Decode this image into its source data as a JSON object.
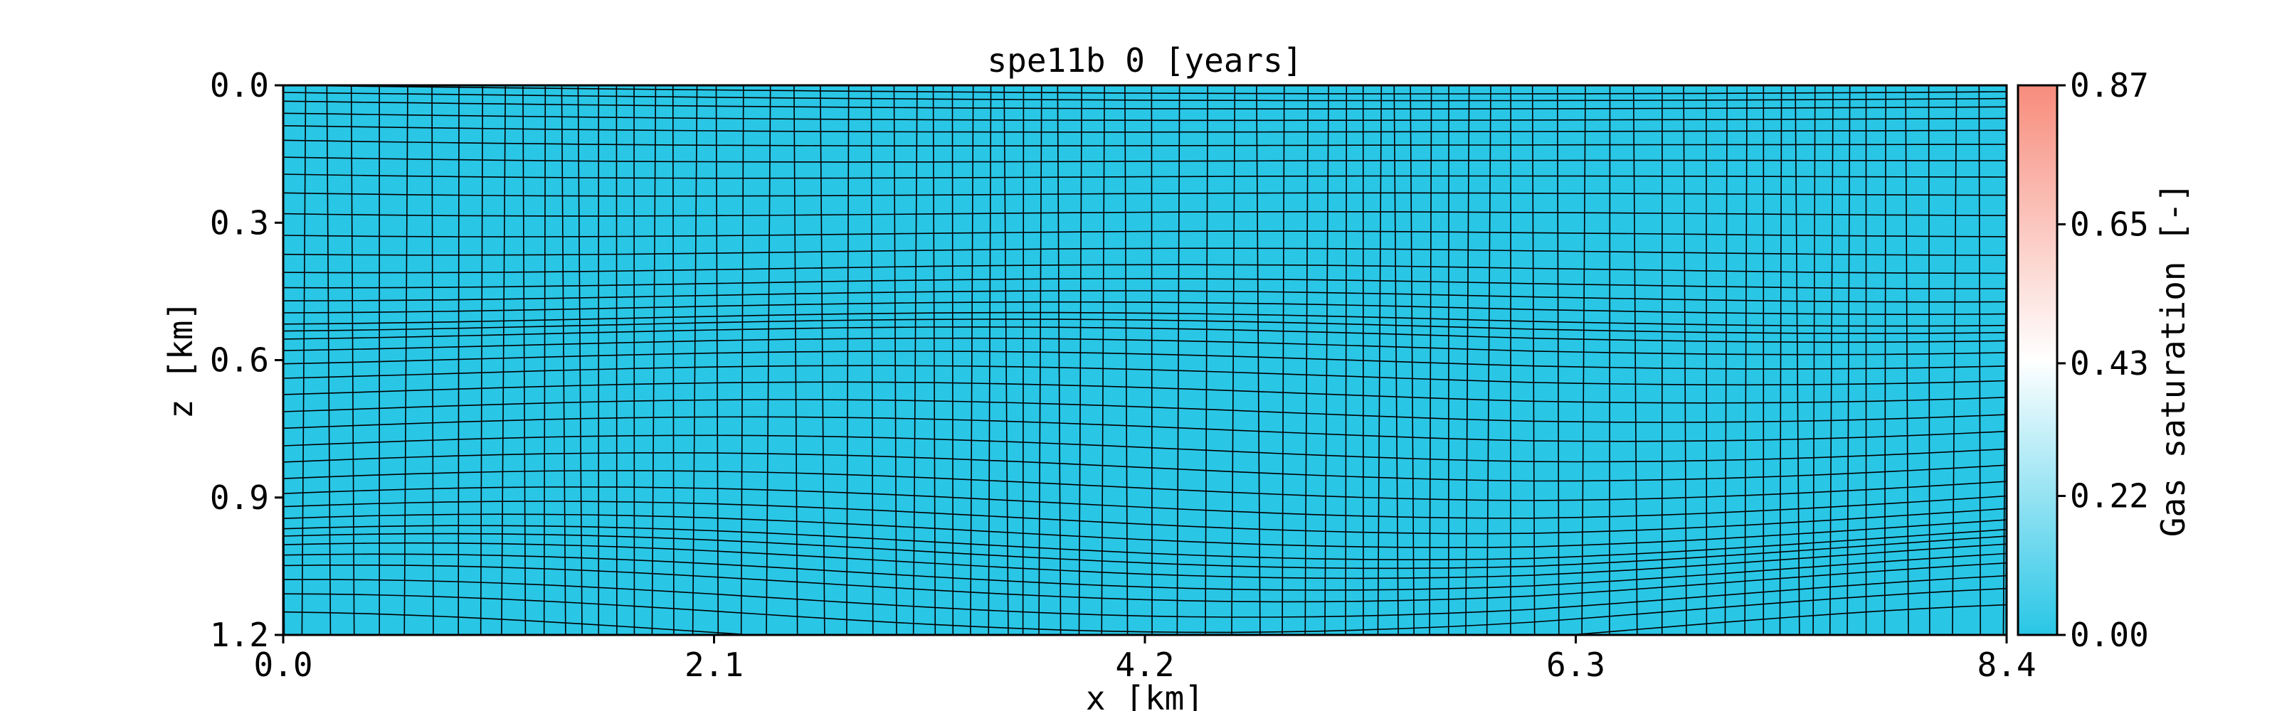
{
  "chart_data": {
    "type": "heatmap",
    "title": "spe11b 0 [years]",
    "xlabel": "x [km]",
    "ylabel": "z [km]",
    "xlim": [
      0.0,
      8.4
    ],
    "ylim": [
      1.2,
      0.0
    ],
    "y_inverted": true,
    "x_ticks": [
      "0.0",
      "2.1",
      "4.2",
      "6.3",
      "8.4"
    ],
    "y_ticks": [
      "0.0",
      "0.3",
      "0.6",
      "0.9",
      "1.2"
    ],
    "grid": false,
    "mesh_overlay": true,
    "field": {
      "name": "Gas saturation",
      "uniform_value": 0.0,
      "fill_color": "#29c6e6"
    },
    "colorbar": {
      "label": "Gas saturation [-]",
      "ticks": [
        "0.00",
        "0.22",
        "0.43",
        "0.65",
        "0.87"
      ],
      "range": [
        0.0,
        0.87
      ],
      "colors": [
        "#29c6e6",
        "#ffffff",
        "#f78c7c"
      ],
      "position": "right"
    }
  }
}
